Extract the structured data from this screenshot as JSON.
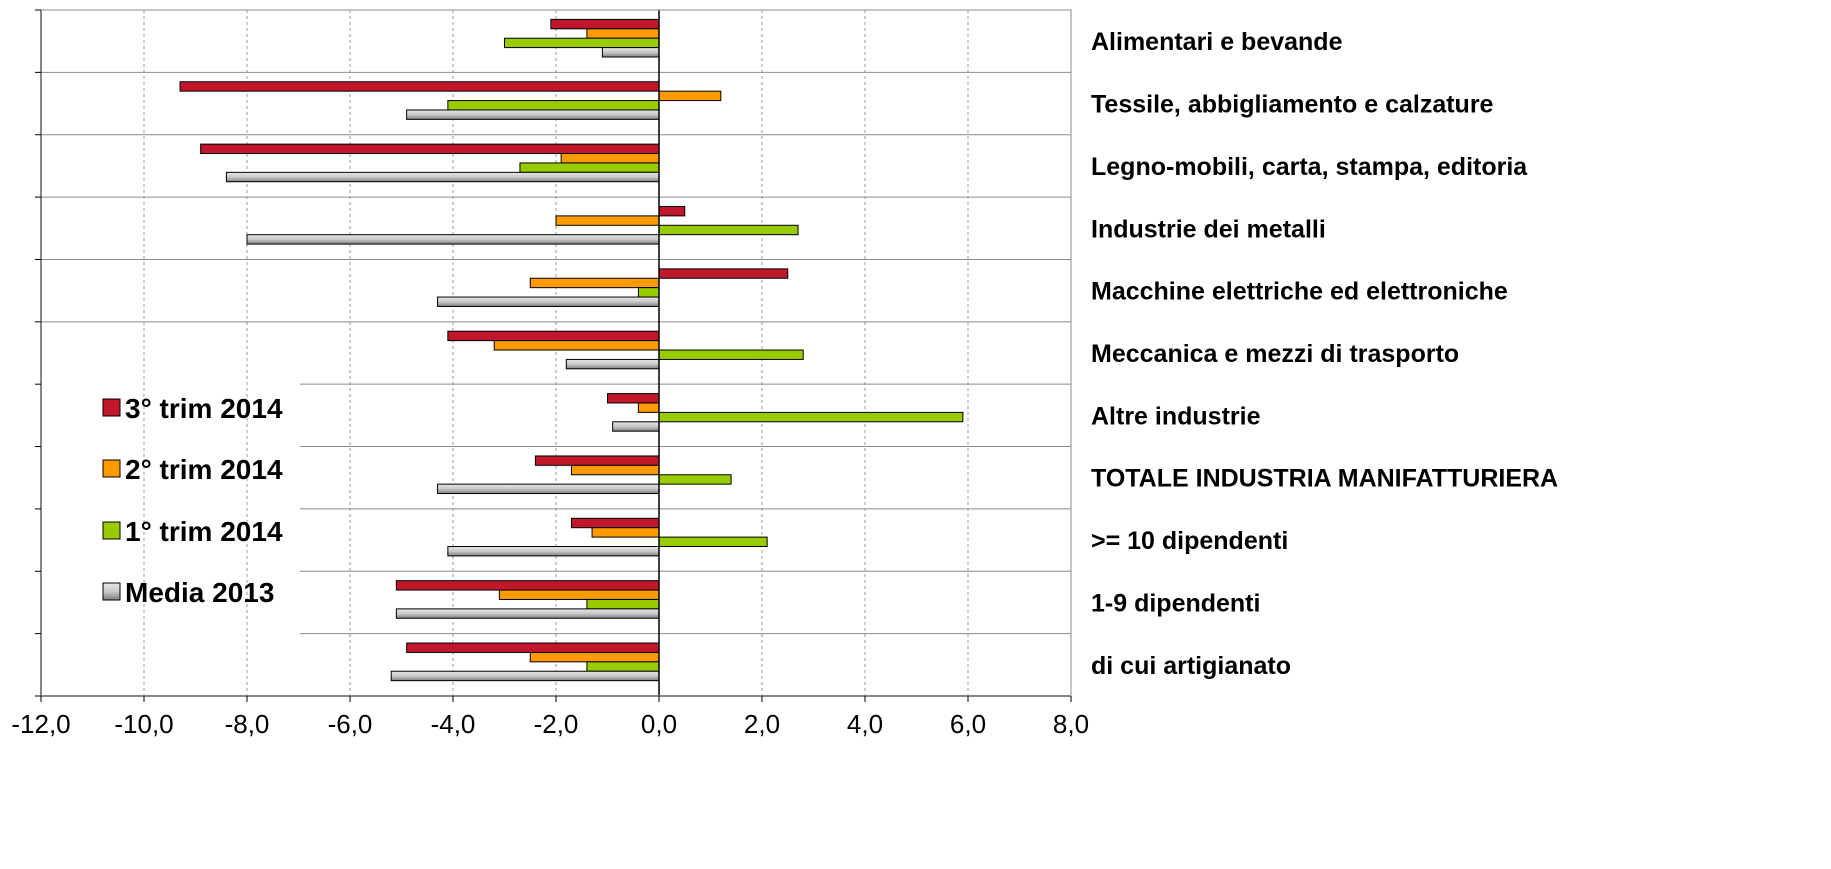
{
  "chart_data": {
    "type": "bar",
    "orientation": "horizontal",
    "categories": [
      "Alimentari e bevande",
      "Tessile, abbigliamento e calzature",
      "Legno-mobili, carta, stampa, editoria",
      "Industrie dei metalli",
      "Macchine elettriche ed elettroniche",
      "Meccanica e mezzi di trasporto",
      "Altre industrie",
      "TOTALE INDUSTRIA MANIFATTURIERA",
      ">= 10 dipendenti",
      "1-9 dipendenti",
      "di cui artigianato"
    ],
    "series": [
      {
        "name": "3° trim 2014",
        "color": "#c0182a",
        "values": [
          -2.1,
          -9.3,
          -8.9,
          0.5,
          2.5,
          -4.1,
          -1.0,
          -2.4,
          -1.7,
          -5.1,
          -4.9
        ]
      },
      {
        "name": "2° trim 2014",
        "color": "#ff9a00",
        "values": [
          -1.4,
          1.2,
          -1.9,
          -2.0,
          -2.5,
          -3.2,
          -0.4,
          -1.7,
          -1.3,
          -3.1,
          -2.5
        ]
      },
      {
        "name": "1° trim 2014",
        "color": "#99cc00",
        "values": [
          -3.0,
          -4.1,
          -2.7,
          2.7,
          -0.4,
          2.8,
          5.9,
          1.4,
          2.1,
          -1.4,
          -1.4
        ]
      },
      {
        "name": "Media 2013",
        "color": "#a6a6a6",
        "values": [
          -1.1,
          -4.9,
          -8.4,
          -8.0,
          -4.3,
          -1.8,
          -0.9,
          -4.3,
          -4.1,
          -5.1,
          -5.2
        ]
      }
    ],
    "xlim": [
      -12,
      8
    ],
    "xticks": [
      -12,
      -10,
      -8,
      -6,
      -4,
      -2,
      0,
      2,
      4,
      6,
      8
    ],
    "tick_labels": [
      "-12,0",
      "-10,0",
      "-8,0",
      "-6,0",
      "-4,0",
      "-2,0",
      "0,0",
      "2,0",
      "4,0",
      "6,0",
      "8,0"
    ],
    "grid": "vertical dashed",
    "legend_position": "left"
  }
}
